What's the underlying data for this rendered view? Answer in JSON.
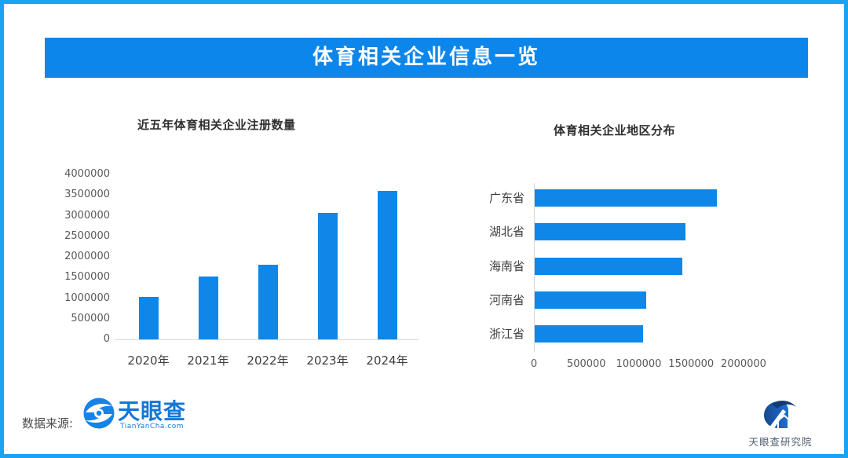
{
  "frame": {
    "border_color": "#1aa3f2",
    "background": "#ffffff"
  },
  "banner": {
    "title": "体育相关企业信息一览",
    "bg_color": "#0d86ec",
    "text_color": "#ffffff"
  },
  "chart_data": [
    {
      "type": "bar",
      "orientation": "vertical",
      "title": "近五年体育相关企业注册数量",
      "categories": [
        "2020年",
        "2021年",
        "2022年",
        "2023年",
        "2024年"
      ],
      "values": [
        1030000,
        1520000,
        1810000,
        3070000,
        3600000
      ],
      "ylim": [
        0,
        4000000
      ],
      "yticks": [
        0,
        500000,
        1000000,
        1500000,
        2000000,
        2500000,
        3000000,
        3500000,
        4000000
      ],
      "grid": false,
      "legend": "none",
      "bar_color": "#0e87e8"
    },
    {
      "type": "bar",
      "orientation": "horizontal",
      "title": "体育相关企业地区分布",
      "categories": [
        "广东省",
        "湖北省",
        "海南省",
        "河南省",
        "浙江省"
      ],
      "values": [
        1740000,
        1440000,
        1410000,
        1060000,
        1030000
      ],
      "xlim": [
        0,
        2000000
      ],
      "xticks": [
        0,
        500000,
        1000000,
        1500000,
        2000000
      ],
      "grid": false,
      "legend": "none",
      "bar_color": "#0e87e8"
    }
  ],
  "footer": {
    "source_label": "数据来源:",
    "tianyancha_logo_text": "天眼查",
    "tianyancha_logo_subtext": "TianYanCha.com"
  },
  "corner_logo": {
    "label": "天眼查研究院"
  }
}
